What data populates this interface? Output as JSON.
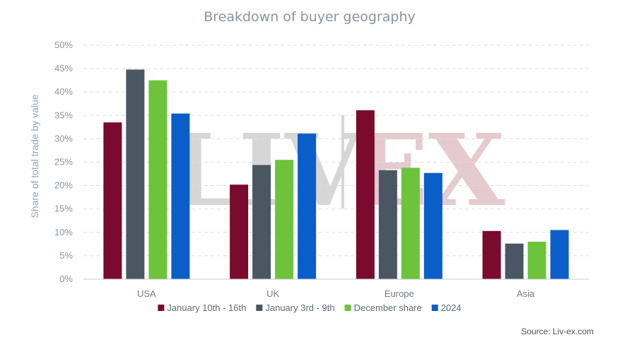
{
  "chart_data": {
    "type": "bar",
    "title": "Breakdown of buyer geography",
    "xlabel": "",
    "ylabel": "Share of total trade by value",
    "ylim": [
      0,
      50
    ],
    "yticks": [
      "0%",
      "5%",
      "10%",
      "15%",
      "20%",
      "25%",
      "30%",
      "35%",
      "40%",
      "45%",
      "50%"
    ],
    "categories": [
      "USA",
      "UK",
      "Europe",
      "Asia"
    ],
    "series": [
      {
        "name": "January 10th - 16th",
        "color": "#7a0a2e",
        "values": [
          33.5,
          20.2,
          36.1,
          10.3
        ]
      },
      {
        "name": "January 3rd - 9th",
        "color": "#4a5762",
        "values": [
          44.8,
          24.4,
          23.3,
          7.6
        ]
      },
      {
        "name": "December share",
        "color": "#6dc43a",
        "values": [
          42.5,
          25.5,
          23.8,
          8.0
        ]
      },
      {
        "name": "2024",
        "color": "#0a5ec9",
        "values": [
          35.4,
          31.1,
          22.7,
          10.5
        ]
      }
    ],
    "grid": true,
    "gridstyle": "dashed",
    "legend": "bottom",
    "source": "Source: Liv-ex.com",
    "watermark": {
      "left": "LIV",
      "right": "EX"
    }
  }
}
